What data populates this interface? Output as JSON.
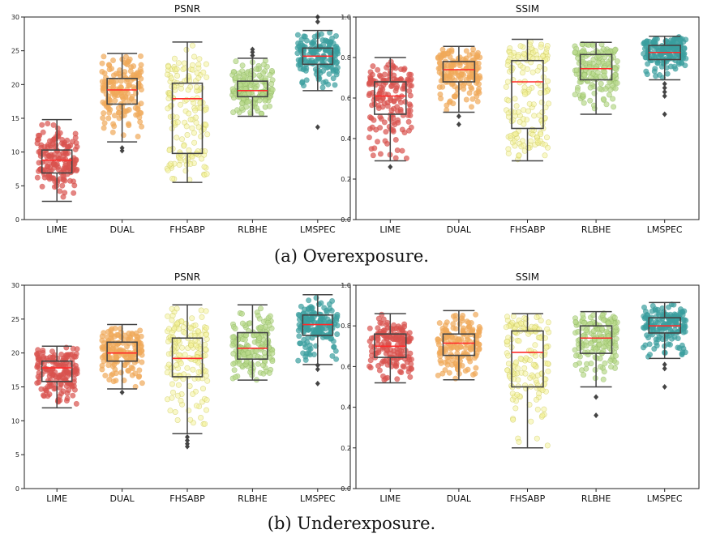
{
  "captions": {
    "a": "(a) Overexposure.",
    "b": "(b) Underexposure."
  },
  "colors": {
    "LIME": "#d9534f",
    "DUAL": "#f0a95a",
    "FHSABP": "#f4f39a",
    "RLBHE": "#b8d98a",
    "LMSPEC": "#3a9e9e",
    "median": "#ff2a2a",
    "box": "#444444"
  },
  "chart_data": [
    {
      "type": "box",
      "title": "PSNR",
      "group": "(a) Overexposure.",
      "categories": [
        "LIME",
        "DUAL",
        "FHSABP",
        "RLBHE",
        "LMSPEC"
      ],
      "ylim": [
        0,
        30
      ],
      "yticks": [
        "0",
        "5",
        "10",
        "15",
        "20",
        "25",
        "30"
      ],
      "boxes": [
        {
          "name": "LIME",
          "whislo": 2.7,
          "q1": 6.9,
          "med": 8.8,
          "q3": 10.3,
          "whishi": 14.8,
          "fliers": []
        },
        {
          "name": "DUAL",
          "whislo": 11.5,
          "q1": 17.1,
          "med": 19.2,
          "q3": 20.9,
          "whishi": 24.6,
          "fliers": [
            10.2,
            10.6
          ]
        },
        {
          "name": "FHSABP",
          "whislo": 5.5,
          "q1": 9.8,
          "med": 17.9,
          "q3": 20.2,
          "whishi": 26.3,
          "fliers": []
        },
        {
          "name": "RLBHE",
          "whislo": 15.3,
          "q1": 18.2,
          "med": 19.1,
          "q3": 20.5,
          "whishi": 23.9,
          "fliers": [
            24.3,
            24.8,
            25.2
          ]
        },
        {
          "name": "LMSPEC",
          "whislo": 19.1,
          "q1": 23.0,
          "med": 24.2,
          "q3": 25.4,
          "whishi": 28.0,
          "fliers": [
            13.7,
            29.3,
            30.0
          ]
        }
      ]
    },
    {
      "type": "box",
      "title": "SSIM",
      "group": "(a) Overexposure.",
      "categories": [
        "LIME",
        "DUAL",
        "FHSABP",
        "RLBHE",
        "LMSPEC"
      ],
      "ylim": [
        0,
        1.0
      ],
      "yticks": [
        "0.0",
        "0.2",
        "0.4",
        "0.6",
        "0.8",
        "1.0"
      ],
      "boxes": [
        {
          "name": "LIME",
          "whislo": 0.29,
          "q1": 0.52,
          "med": 0.61,
          "q3": 0.68,
          "whishi": 0.8,
          "fliers": [
            0.26
          ]
        },
        {
          "name": "DUAL",
          "whislo": 0.53,
          "q1": 0.68,
          "med": 0.74,
          "q3": 0.78,
          "whishi": 0.855,
          "fliers": [
            0.47,
            0.51
          ]
        },
        {
          "name": "FHSABP",
          "whislo": 0.29,
          "q1": 0.45,
          "med": 0.68,
          "q3": 0.785,
          "whishi": 0.89,
          "fliers": []
        },
        {
          "name": "RLBHE",
          "whislo": 0.52,
          "q1": 0.69,
          "med": 0.745,
          "q3": 0.815,
          "whishi": 0.875,
          "fliers": []
        },
        {
          "name": "LMSPEC",
          "whislo": 0.69,
          "q1": 0.79,
          "med": 0.825,
          "q3": 0.86,
          "whishi": 0.905,
          "fliers": [
            0.52,
            0.61,
            0.63,
            0.65,
            0.67
          ]
        }
      ]
    },
    {
      "type": "box",
      "title": "PSNR",
      "group": "(b) Underexposure.",
      "categories": [
        "LIME",
        "DUAL",
        "FHSABP",
        "RLBHE",
        "LMSPEC"
      ],
      "ylim": [
        0,
        30
      ],
      "yticks": [
        "0",
        "5",
        "10",
        "15",
        "20",
        "25",
        "30"
      ],
      "boxes": [
        {
          "name": "LIME",
          "whislo": 11.9,
          "q1": 15.8,
          "med": 17.8,
          "q3": 18.8,
          "whishi": 21.0,
          "fliers": []
        },
        {
          "name": "DUAL",
          "whislo": 14.7,
          "q1": 18.8,
          "med": 20.0,
          "q3": 21.6,
          "whishi": 24.2,
          "fliers": [
            14.2
          ]
        },
        {
          "name": "FHSABP",
          "whislo": 8.1,
          "q1": 16.5,
          "med": 19.2,
          "q3": 22.2,
          "whishi": 27.1,
          "fliers": [
            6.2,
            6.6,
            7.1,
            7.6
          ]
        },
        {
          "name": "RLBHE",
          "whislo": 16.0,
          "q1": 19.1,
          "med": 20.7,
          "q3": 23.0,
          "whishi": 27.1,
          "fliers": []
        },
        {
          "name": "LMSPEC",
          "whislo": 18.3,
          "q1": 22.6,
          "med": 24.2,
          "q3": 25.6,
          "whishi": 28.6,
          "fliers": [
            15.5,
            17.6,
            18.2
          ]
        }
      ]
    },
    {
      "type": "box",
      "title": "SSIM",
      "group": "(b) Underexposure.",
      "categories": [
        "LIME",
        "DUAL",
        "FHSABP",
        "RLBHE",
        "LMSPEC"
      ],
      "ylim": [
        0,
        1.0
      ],
      "yticks": [
        "0.0",
        "0.2",
        "0.4",
        "0.6",
        "0.8",
        "1.0"
      ],
      "boxes": [
        {
          "name": "LIME",
          "whislo": 0.52,
          "q1": 0.645,
          "med": 0.7,
          "q3": 0.76,
          "whishi": 0.86,
          "fliers": []
        },
        {
          "name": "DUAL",
          "whislo": 0.535,
          "q1": 0.655,
          "med": 0.715,
          "q3": 0.76,
          "whishi": 0.875,
          "fliers": []
        },
        {
          "name": "FHSABP",
          "whislo": 0.2,
          "q1": 0.5,
          "med": 0.67,
          "q3": 0.775,
          "whishi": 0.86,
          "fliers": []
        },
        {
          "name": "RLBHE",
          "whislo": 0.5,
          "q1": 0.665,
          "med": 0.74,
          "q3": 0.8,
          "whishi": 0.87,
          "fliers": [
            0.36,
            0.45
          ]
        },
        {
          "name": "LMSPEC",
          "whislo": 0.64,
          "q1": 0.765,
          "med": 0.8,
          "q3": 0.84,
          "whishi": 0.915,
          "fliers": [
            0.5,
            0.59,
            0.61
          ]
        }
      ]
    }
  ]
}
